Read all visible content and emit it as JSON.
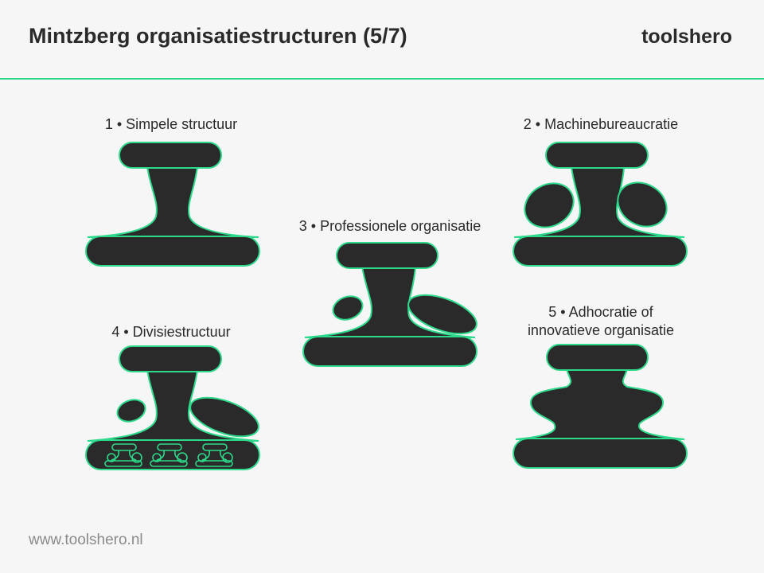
{
  "header": {
    "title": "Mintzberg organisatiestructuren (5/7)",
    "brand": "toolshero"
  },
  "footer": {
    "url": "www.toolshero.nl"
  },
  "structures": [
    {
      "label": "1 • Simpele structuur"
    },
    {
      "label": "2 • Machinebureaucratie"
    },
    {
      "label": "3 • Professionele organisatie"
    },
    {
      "label": "4 • Divisiestructuur"
    },
    {
      "label_line1": "5 • Adhocratie of",
      "label_line2": "innovatieve organisatie"
    }
  ],
  "colors": {
    "shape_fill": "#2a2a2a",
    "outline": "#2dd98a",
    "background": "#f6f6f6",
    "divider": "#2dd98a"
  }
}
